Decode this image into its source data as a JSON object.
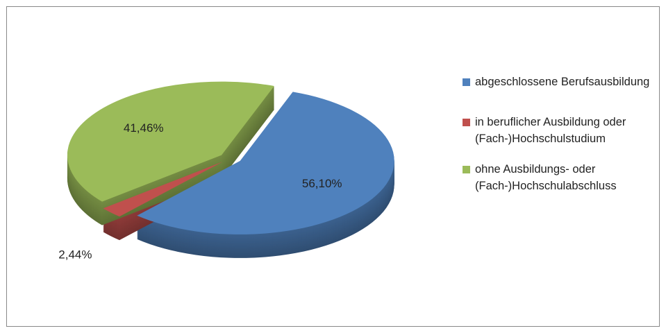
{
  "chart_data": {
    "type": "pie",
    "categories": [
      "abgeschlossene Berufsausbildung",
      "in beruflicher Ausbildung oder (Fach-)Hochschulstudium",
      "ohne Ausbildungs- oder (Fach-)Hochschulabschluss"
    ],
    "values": [
      56.1,
      2.44,
      41.46
    ],
    "value_labels": [
      "56,10%",
      "2,44%",
      "41,46%"
    ],
    "colors": [
      "#4f81bd",
      "#c0504d",
      "#9bbb59"
    ],
    "legend": "right"
  }
}
